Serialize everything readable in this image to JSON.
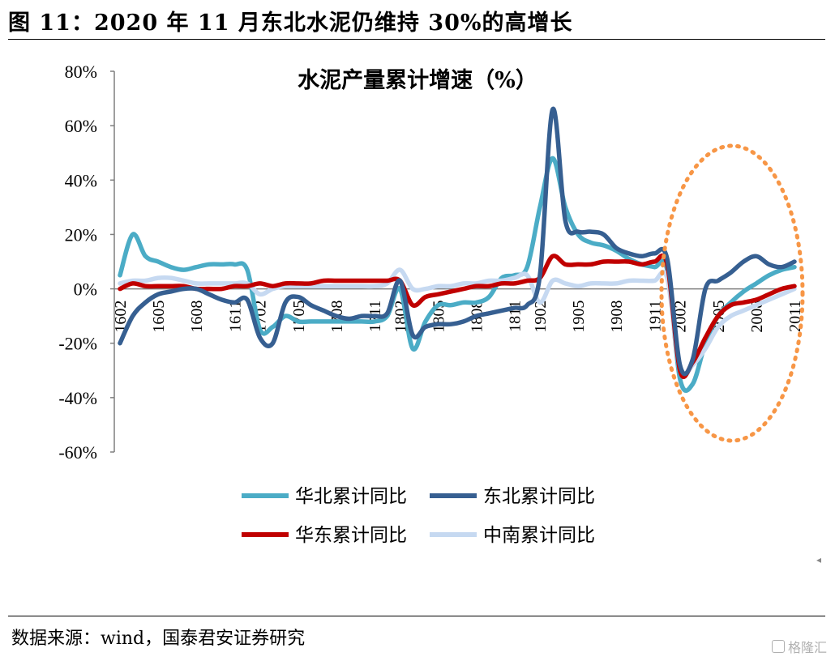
{
  "header": {
    "title": "图 11：2020 年 11 月东北水泥仍维持 30%的高增长"
  },
  "footer": {
    "source": "数据来源：wind，国泰君安证券研究",
    "watermark": "格隆汇"
  },
  "chart_data": {
    "type": "line",
    "title": "水泥产量累计增速（%）",
    "yticks": [
      "80%",
      "60%",
      "40%",
      "20%",
      "0%",
      "-20%",
      "-40%",
      "-60%"
    ],
    "ylim": [
      -60,
      80
    ],
    "xticks": [
      "1602",
      "1605",
      "1608",
      "1611",
      "1702",
      "1705",
      "1708",
      "1711",
      "1802",
      "1805",
      "1808",
      "1811",
      "1902",
      "1905",
      "1908",
      "1911",
      "2002",
      "2005",
      "2008",
      "2011"
    ],
    "x": [
      "1602",
      "1603",
      "1604",
      "1605",
      "1606",
      "1607",
      "1608",
      "1609",
      "1610",
      "1611",
      "1612",
      "1702",
      "1703",
      "1704",
      "1705",
      "1706",
      "1707",
      "1708",
      "1709",
      "1710",
      "1711",
      "1712",
      "1802",
      "1803",
      "1804",
      "1805",
      "1806",
      "1807",
      "1808",
      "1809",
      "1810",
      "1811",
      "1812",
      "1902",
      "1903",
      "1904",
      "1905",
      "1906",
      "1907",
      "1908",
      "1909",
      "1910",
      "1911",
      "1912",
      "2002",
      "2003",
      "2004",
      "2005",
      "2006",
      "2007",
      "2008",
      "2009",
      "2010",
      "2011"
    ],
    "series": [
      {
        "name": "华北累计同比",
        "color": "#4bacc6",
        "values": [
          5,
          20,
          12,
          10,
          8,
          7,
          8,
          9,
          9,
          9,
          7,
          -15,
          -14,
          -10,
          -12,
          -12,
          -12,
          -12,
          -12,
          -12,
          -12,
          -10,
          0,
          -22,
          -12,
          -6,
          -6,
          -5,
          -5,
          -3,
          4,
          5,
          8,
          30,
          48,
          30,
          20,
          17,
          16,
          14,
          11,
          9,
          8,
          7,
          -33,
          -35,
          -20,
          -10,
          -5,
          -1,
          2,
          5,
          7,
          8
        ]
      },
      {
        "name": "东北累计同比",
        "color": "#365f91",
        "values": [
          -20,
          -10,
          -5,
          -2,
          -1,
          0,
          0,
          -2,
          -4,
          -5,
          -4,
          -18,
          -20,
          -5,
          -3,
          -6,
          -8,
          -10,
          -11,
          -10,
          -10,
          -9,
          3,
          -17,
          -14,
          -13,
          -13,
          -12,
          -10,
          -9,
          -8,
          -7,
          -6,
          5,
          66,
          25,
          21,
          21,
          20,
          15,
          13,
          12,
          13,
          11,
          -28,
          -26,
          0,
          3,
          6,
          10,
          12,
          9,
          8,
          10
        ]
      },
      {
        "name": "华东累计同比",
        "color": "#c00000",
        "values": [
          0,
          2,
          1,
          1,
          1,
          1,
          0,
          0,
          0,
          1,
          1,
          2,
          1,
          2,
          2,
          2,
          3,
          3,
          3,
          3,
          3,
          3,
          3,
          -6,
          -3,
          -2,
          -1,
          0,
          1,
          1,
          2,
          2,
          3,
          4,
          12,
          9,
          9,
          9,
          10,
          10,
          10,
          9,
          10,
          9,
          -30,
          -27,
          -18,
          -10,
          -6,
          -5,
          -4,
          -2,
          0,
          1
        ]
      },
      {
        "name": "中南累计同比",
        "color": "#c6d9f1",
        "values": [
          2,
          3,
          3,
          4,
          4,
          3,
          2,
          2,
          2,
          2,
          2,
          -2,
          0,
          1,
          1,
          1,
          1,
          1,
          1,
          1,
          1,
          2,
          7,
          0,
          0,
          1,
          1,
          2,
          2,
          3,
          3,
          4,
          5,
          -5,
          3,
          2,
          1,
          2,
          2,
          2,
          3,
          3,
          3,
          4,
          -30,
          -28,
          -22,
          -14,
          -10,
          -8,
          -6,
          -4,
          -2,
          0
        ]
      }
    ],
    "annotation": {
      "shape": "ellipse",
      "style": "dotted",
      "color": "#f4a460"
    },
    "legend_position": "bottom",
    "grid": false
  }
}
